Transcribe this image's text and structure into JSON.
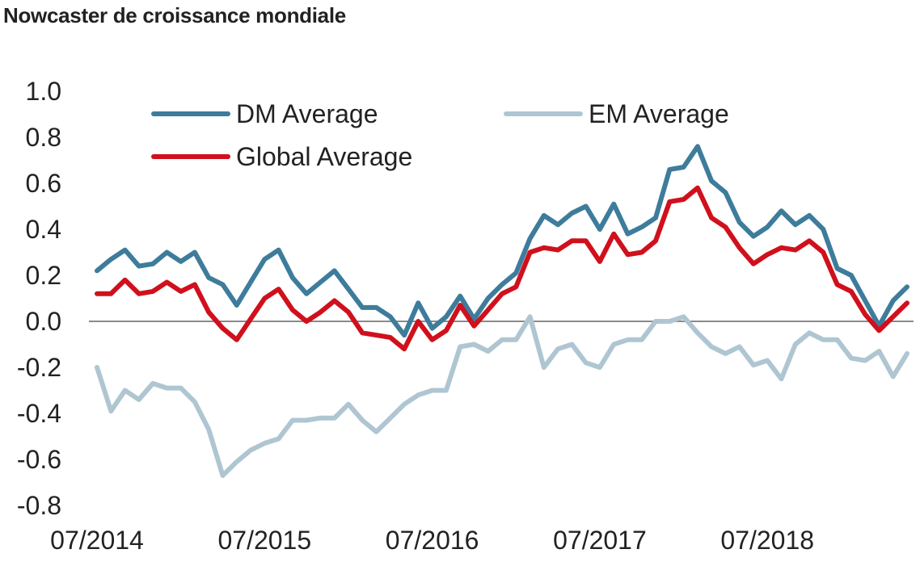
{
  "title": "Nowcaster de croissance mondiale",
  "chart_data": {
    "type": "line",
    "title": "Nowcaster de croissance mondiale",
    "xlabel": "",
    "ylabel": "",
    "ylim": [
      -0.8,
      1.0
    ],
    "yticks": [
      "1.0",
      "0.8",
      "0.6",
      "0.4",
      "0.2",
      "0.0",
      "-0.2",
      "-0.4",
      "-0.6",
      "-0.8"
    ],
    "ytick_values": [
      1.0,
      0.8,
      0.6,
      0.4,
      0.2,
      0.0,
      -0.2,
      -0.4,
      -0.6,
      -0.8
    ],
    "xticks": [
      "07/2014",
      "07/2015",
      "07/2016",
      "07/2017",
      "07/2018"
    ],
    "xtick_index": [
      0,
      12,
      24,
      36,
      48
    ],
    "x": [
      "07/2014",
      "08/2014",
      "09/2014",
      "10/2014",
      "11/2014",
      "12/2014",
      "01/2015",
      "02/2015",
      "03/2015",
      "04/2015",
      "05/2015",
      "06/2015",
      "07/2015",
      "08/2015",
      "09/2015",
      "10/2015",
      "11/2015",
      "12/2015",
      "01/2016",
      "02/2016",
      "03/2016",
      "04/2016",
      "05/2016",
      "06/2016",
      "07/2016",
      "08/2016",
      "09/2016",
      "10/2016",
      "11/2016",
      "12/2016",
      "01/2017",
      "02/2017",
      "03/2017",
      "04/2017",
      "05/2017",
      "06/2017",
      "07/2017",
      "08/2017",
      "09/2017",
      "10/2017",
      "11/2017",
      "12/2017",
      "01/2018",
      "02/2018",
      "03/2018",
      "04/2018",
      "05/2018",
      "06/2018",
      "07/2018",
      "08/2018",
      "09/2018",
      "10/2018",
      "11/2018",
      "12/2018",
      "01/2019",
      "02/2019",
      "03/2019",
      "04/2019",
      "05/2019"
    ],
    "grid": false,
    "zero_line": true,
    "legend_position": "top",
    "series": [
      {
        "name": "DM Average",
        "color": "#3E7C9B",
        "values": [
          0.22,
          0.27,
          0.31,
          0.24,
          0.25,
          0.3,
          0.26,
          0.3,
          0.19,
          0.16,
          0.07,
          0.17,
          0.27,
          0.31,
          0.19,
          0.12,
          0.17,
          0.22,
          0.14,
          0.06,
          0.06,
          0.02,
          -0.06,
          0.08,
          -0.03,
          0.02,
          0.11,
          0.01,
          0.1,
          0.16,
          0.21,
          0.36,
          0.46,
          0.42,
          0.47,
          0.5,
          0.4,
          0.51,
          0.38,
          0.41,
          0.45,
          0.66,
          0.67,
          0.76,
          0.61,
          0.56,
          0.43,
          0.37,
          0.41,
          0.48,
          0.42,
          0.46,
          0.4,
          0.23,
          0.2,
          0.09,
          -0.02,
          0.09,
          0.15
        ]
      },
      {
        "name": "EM Average",
        "color": "#AFC6D2",
        "values": [
          -0.2,
          -0.39,
          -0.3,
          -0.34,
          -0.27,
          -0.29,
          -0.29,
          -0.35,
          -0.47,
          -0.67,
          -0.61,
          -0.56,
          -0.53,
          -0.51,
          -0.43,
          -0.43,
          -0.42,
          -0.42,
          -0.36,
          -0.43,
          -0.48,
          -0.42,
          -0.36,
          -0.32,
          -0.3,
          -0.3,
          -0.11,
          -0.1,
          -0.13,
          -0.08,
          -0.08,
          0.02,
          -0.2,
          -0.12,
          -0.1,
          -0.18,
          -0.2,
          -0.1,
          -0.08,
          -0.08,
          0.0,
          0.0,
          0.02,
          -0.05,
          -0.11,
          -0.14,
          -0.11,
          -0.19,
          -0.17,
          -0.25,
          -0.1,
          -0.05,
          -0.08,
          -0.08,
          -0.16,
          -0.17,
          -0.13,
          -0.24,
          -0.14
        ]
      },
      {
        "name": "Global Average",
        "color": "#D0101C",
        "values": [
          0.12,
          0.12,
          0.18,
          0.12,
          0.13,
          0.17,
          0.13,
          0.16,
          0.04,
          -0.03,
          -0.08,
          0.01,
          0.1,
          0.14,
          0.05,
          0.0,
          0.04,
          0.09,
          0.04,
          -0.05,
          -0.06,
          -0.07,
          -0.12,
          0.0,
          -0.08,
          -0.04,
          0.07,
          -0.02,
          0.05,
          0.12,
          0.15,
          0.3,
          0.32,
          0.31,
          0.35,
          0.35,
          0.26,
          0.38,
          0.29,
          0.3,
          0.35,
          0.52,
          0.53,
          0.58,
          0.45,
          0.41,
          0.32,
          0.25,
          0.29,
          0.32,
          0.31,
          0.35,
          0.3,
          0.16,
          0.13,
          0.03,
          -0.04,
          0.02,
          0.08
        ]
      }
    ]
  }
}
